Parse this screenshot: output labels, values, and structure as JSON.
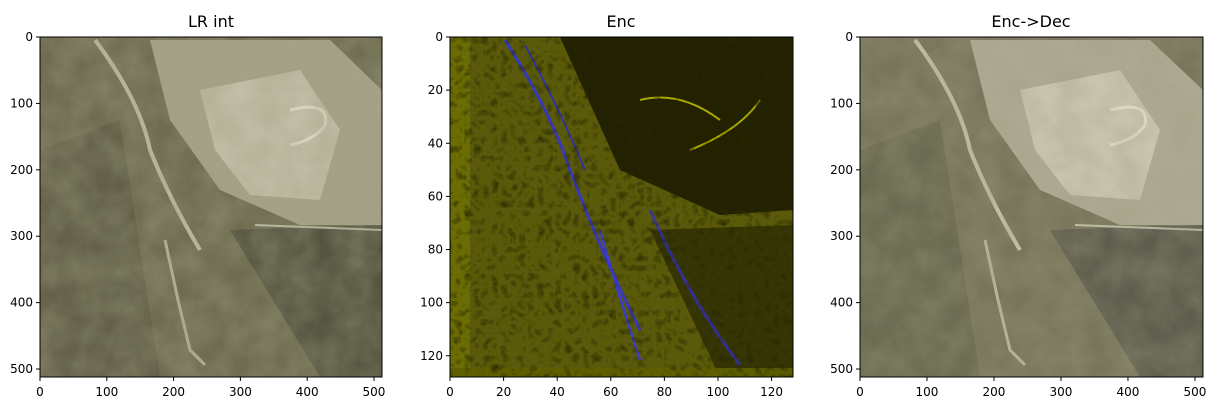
{
  "chart_data": [
    {
      "type": "heatmap",
      "title": "LR int",
      "xlabel": "",
      "ylabel": "",
      "image_size": [
        512,
        512
      ],
      "xlim": [
        0,
        512
      ],
      "ylim": [
        512,
        0
      ],
      "xticks": [
        0,
        100,
        200,
        300,
        400,
        500
      ],
      "yticks": [
        0,
        100,
        200,
        300,
        400,
        500
      ],
      "palette": {
        "base": "#6e6b4e",
        "dark": "#4f4f3c",
        "light": "#d9d5bf",
        "road": "#c8c3ad"
      }
    },
    {
      "type": "heatmap",
      "title": "Enc",
      "xlabel": "",
      "ylabel": "",
      "image_size": [
        128,
        128
      ],
      "xlim": [
        0,
        128
      ],
      "ylim": [
        128,
        0
      ],
      "xticks": [
        0,
        20,
        40,
        60,
        80,
        100,
        120
      ],
      "yticks": [
        0,
        20,
        40,
        60,
        80,
        100,
        120
      ],
      "palette": {
        "base": "#5a5a08",
        "dark": "#0a0a00",
        "accent": "#2b2bd9",
        "bright": "#c8c800"
      }
    },
    {
      "type": "heatmap",
      "title": "Enc->Dec",
      "xlabel": "",
      "ylabel": "",
      "image_size": [
        512,
        512
      ],
      "xlim": [
        0,
        512
      ],
      "ylim": [
        512,
        0
      ],
      "xticks": [
        0,
        100,
        200,
        300,
        400,
        500
      ],
      "yticks": [
        0,
        100,
        200,
        300,
        400,
        500
      ],
      "palette": {
        "base": "#77745a",
        "dark": "#58574a",
        "light": "#e0dccb",
        "road": "#cdc9b6"
      }
    }
  ]
}
